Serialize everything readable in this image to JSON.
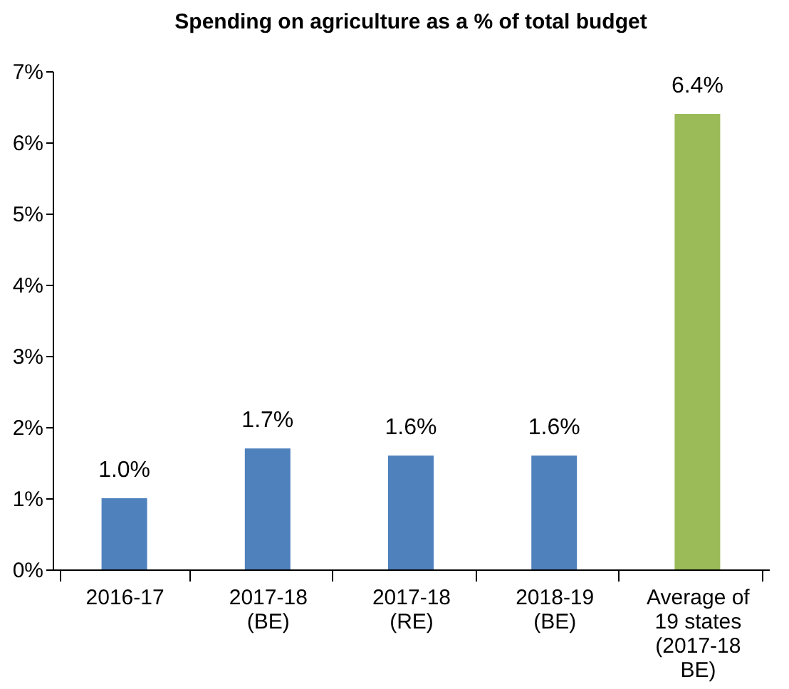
{
  "chart_data": {
    "type": "bar",
    "title": "Spending on agriculture as a % of total budget",
    "categories": [
      "2016-17",
      "2017-18\n(BE)",
      "2017-18\n(RE)",
      "2018-19\n(BE)",
      "Average of\n19 states\n(2017-18\nBE)"
    ],
    "values": [
      1.0,
      1.7,
      1.6,
      1.6,
      6.4
    ],
    "value_labels": [
      "1.0%",
      "1.7%",
      "1.6%",
      "1.6%",
      "6.4%"
    ],
    "colors": [
      "#4f81bd",
      "#4f81bd",
      "#4f81bd",
      "#4f81bd",
      "#9bbb59"
    ],
    "ylim": [
      0,
      7
    ],
    "yticks": [
      {
        "value": 0,
        "label": "0%"
      },
      {
        "value": 1,
        "label": "1%"
      },
      {
        "value": 2,
        "label": "2%"
      },
      {
        "value": 3,
        "label": "3%"
      },
      {
        "value": 4,
        "label": "4%"
      },
      {
        "value": 5,
        "label": "5%"
      },
      {
        "value": 6,
        "label": "6%"
      },
      {
        "value": 7,
        "label": "7%"
      }
    ],
    "grid": false
  }
}
